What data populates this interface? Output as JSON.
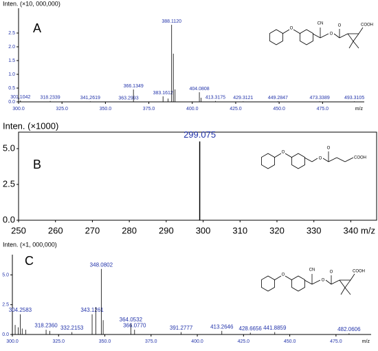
{
  "chart_data": [
    {
      "type": "bar",
      "panel_label": "A",
      "ylabel": "Inten. (×10, 000,000)",
      "xlabel": "m/z",
      "color": "#000000",
      "label_color": "#2233aa",
      "x": [
        301.1042,
        318.2339,
        341.2619,
        363.2993,
        366.1349,
        383.1612,
        386.1,
        388.112,
        389.1,
        390.1,
        404.0808,
        405.1,
        413.3175,
        429.3121,
        449.2847,
        473.3389,
        493.3105
      ],
      "values": [
        0.05,
        0.03,
        0.02,
        0.01,
        0.45,
        0.2,
        0.12,
        2.8,
        1.75,
        0.45,
        0.35,
        0.15,
        0.03,
        0.02,
        0.02,
        0.02,
        0.02
      ],
      "labels": [
        "301,1042",
        "318.2339",
        "341,2619",
        "363.2993",
        "366.1349",
        "383.1612",
        null,
        "388.1120",
        null,
        null,
        "404.0808",
        null,
        "413.3175",
        "429.3121",
        "449.2847",
        "473.3389",
        "493.3105"
      ],
      "xlim": [
        300,
        499
      ],
      "ylim": [
        0,
        3.4
      ],
      "xticks": [
        {
          "value": 300,
          "label": "300.0"
        },
        {
          "value": 325,
          "label": "325.0"
        },
        {
          "value": 350,
          "label": "350.0"
        },
        {
          "value": 375,
          "label": "375.0"
        },
        {
          "value": 400,
          "label": "400.0"
        },
        {
          "value": 425,
          "label": "425.0"
        },
        {
          "value": 450,
          "label": "450.0"
        },
        {
          "value": 475,
          "label": "475.0"
        }
      ],
      "yticks": [
        {
          "value": 0,
          "label": "0.0"
        },
        0.5,
        {
          "value": 1,
          "label": "1.0"
        },
        1.5,
        {
          "value": 2,
          "label": "2.0"
        },
        2.5
      ],
      "frame": false,
      "structure_atoms": [
        "O",
        "CN",
        "O",
        "O",
        "COOH"
      ]
    },
    {
      "type": "bar",
      "panel_label": "B",
      "ylabel": "Inten. (×1000)",
      "xlabel": "m/z",
      "color": "#000000",
      "label_color": "#2233aa",
      "x": [
        299.075
      ],
      "values": [
        5.5
      ],
      "labels": [
        "299.075"
      ],
      "xlim": [
        250,
        347
      ],
      "ylim": [
        0,
        6.15
      ],
      "xticks": [
        250,
        260,
        270,
        280,
        290,
        300,
        310,
        320,
        330,
        340
      ],
      "yticks": [
        {
          "value": 0,
          "label": "0.0"
        },
        2.5,
        {
          "value": 5,
          "label": "5.0"
        }
      ],
      "frame": true,
      "structure_atoms": [
        "O",
        "O",
        "O",
        "COOH"
      ]
    },
    {
      "type": "bar",
      "panel_label": "C",
      "ylabel": "Inten. (×1, 000,000)",
      "xlabel": "m/z",
      "color": "#000000",
      "label_color": "#2233aa",
      "x": [
        301.5,
        303.2,
        304.2583,
        305.3,
        307.2,
        318.236,
        320.2,
        332.2153,
        343.1261,
        345.1,
        348.0802,
        349.1,
        364.0532,
        366.077,
        391.2777,
        413.2646,
        428.6656,
        441.8859,
        482.0606
      ],
      "values": [
        0.8,
        0.6,
        1.7,
        0.5,
        0.4,
        0.4,
        0.3,
        0.2,
        1.7,
        2.3,
        5.5,
        1.2,
        0.9,
        0.4,
        0.2,
        0.3,
        0.15,
        0.2,
        0.1
      ],
      "labels": [
        null,
        null,
        "304.2583",
        null,
        null,
        "318.2360",
        null,
        "332.2153",
        "343.1261",
        null,
        "348.0802",
        null,
        "364.0532",
        "366.0770",
        "391.2777",
        "413.2646",
        "428.6656",
        "441.8859",
        "482.0606"
      ],
      "xlim": [
        300,
        494
      ],
      "ylim": [
        0,
        6.7
      ],
      "xticks": [
        {
          "value": 300,
          "label": "300.0"
        },
        {
          "value": 325,
          "label": "325.0"
        },
        {
          "value": 350,
          "label": "350.0"
        },
        {
          "value": 375,
          "label": "375.0"
        },
        {
          "value": 400,
          "label": "400.0"
        },
        {
          "value": 425,
          "label": "425.0"
        },
        {
          "value": 450,
          "label": "450.0"
        },
        {
          "value": 475,
          "label": "475.0"
        }
      ],
      "yticks": [
        {
          "value": 0,
          "label": "0.0"
        },
        2.5,
        {
          "value": 5,
          "label": "5.0"
        }
      ],
      "frame": false,
      "structure_atoms": [
        "O",
        "CN",
        "O",
        "O",
        "COOH"
      ]
    }
  ]
}
